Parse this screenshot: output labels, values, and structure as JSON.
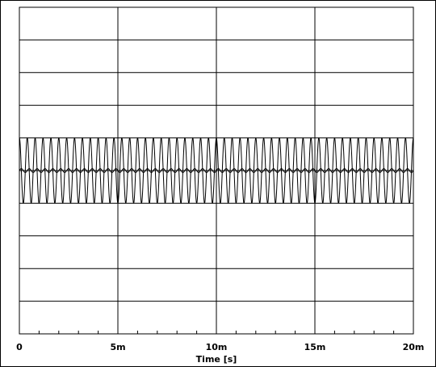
{
  "chart_data": {
    "type": "line",
    "title": "",
    "xlabel": "Time [s]",
    "ylabel": "",
    "xlim": [
      0,
      20
    ],
    "ylim": [
      -5,
      5
    ],
    "x_unit": "ms",
    "x_ticks": [
      0,
      5,
      10,
      15,
      20
    ],
    "x_tick_labels": [
      "0",
      "5m",
      "10m",
      "15m",
      "20m"
    ],
    "grid": true,
    "grid_divisions": {
      "x": 4,
      "y": 10
    },
    "minor_ticks_per_division": 5,
    "legend": "none",
    "line_color": "#000000",
    "series": [
      {
        "kind": "sine",
        "amplitude": 1.0,
        "offset": 0,
        "frequency_hz": 2500,
        "phase_deg": 90
      },
      {
        "kind": "sine",
        "amplitude": 0.06,
        "offset": 0,
        "frequency_hz": 2500,
        "phase_deg": 0
      }
    ]
  }
}
